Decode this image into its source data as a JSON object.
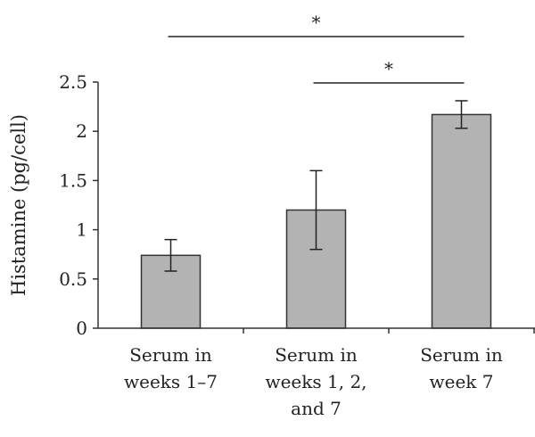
{
  "chart_data": {
    "type": "bar",
    "title": "",
    "xlabel": "",
    "ylabel": "Histamine (pg/cell)",
    "ylim": [
      0,
      2.5
    ],
    "yticks": [
      "0",
      "0.5",
      "1",
      "1.5",
      "2",
      "2.5"
    ],
    "grid": false,
    "categories": [
      [
        "Serum in",
        "weeks 1–7"
      ],
      [
        "Serum in",
        "weeks 1, 2,",
        "and 7"
      ],
      [
        "Serum in",
        "week 7"
      ]
    ],
    "values": [
      0.74,
      1.2,
      2.17
    ],
    "error": [
      0.16,
      0.4,
      0.14
    ],
    "bar_color": "#b3b3b3",
    "bar_edge_color": "#333333",
    "significance": [
      {
        "from": 0,
        "to": 2,
        "label": "*"
      },
      {
        "from": 1,
        "to": 2,
        "label": "*"
      }
    ]
  }
}
